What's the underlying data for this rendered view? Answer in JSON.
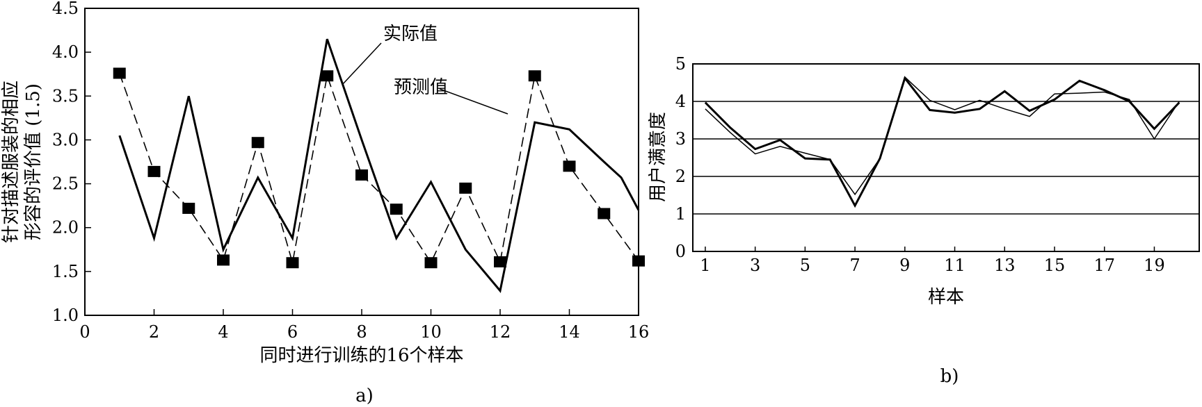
{
  "chart_data": [
    {
      "type": "line",
      "panel_label": "a)",
      "xlabel": "同时进行训练的16个样本",
      "ylabel": [
        "针对描述服装的相应",
        "形容的评价值 (1.5)"
      ],
      "xlim": [
        0,
        16
      ],
      "ylim": [
        1.0,
        4.5
      ],
      "x_ticks": [
        "0",
        "2",
        "4",
        "6",
        "8",
        "10",
        "12",
        "14",
        "16"
      ],
      "y_ticks": [
        "1.0",
        "1.5",
        "2.0",
        "2.5",
        "3.0",
        "3.5",
        "4.0",
        "4.5"
      ],
      "grid": false,
      "annotations": [
        "实际值",
        "预测值"
      ],
      "series": [
        {
          "name": "实际值",
          "style": "solid",
          "color": "#000000",
          "x": [
            1,
            2,
            3,
            4,
            5,
            6,
            7,
            8,
            9,
            10,
            11,
            12,
            13,
            14,
            15,
            15.5,
            16
          ],
          "y": [
            3.05,
            1.88,
            3.5,
            1.75,
            2.57,
            1.88,
            4.15,
            3.0,
            1.88,
            2.52,
            1.75,
            1.28,
            3.2,
            3.12,
            2.75,
            2.57,
            2.2
          ]
        },
        {
          "name": "预测值",
          "style": "dashed-square-markers",
          "color": "#000000",
          "x": [
            1,
            2,
            3,
            4,
            5,
            6,
            7,
            8,
            9,
            10,
            11,
            12,
            13,
            14,
            15,
            16
          ],
          "y": [
            3.76,
            2.64,
            2.22,
            1.63,
            2.97,
            1.6,
            3.73,
            2.6,
            2.21,
            1.6,
            2.45,
            1.61,
            3.73,
            2.7,
            2.16,
            1.62
          ]
        }
      ]
    },
    {
      "type": "line",
      "panel_label": "b)",
      "xlabel": "样本",
      "ylabel": "用户满意度",
      "xlim": [
        0.5,
        20.8
      ],
      "ylim": [
        0,
        5
      ],
      "x_ticks": [
        "1",
        "3",
        "5",
        "7",
        "9",
        "11",
        "13",
        "15",
        "17",
        "19"
      ],
      "y_ticks": [
        "0",
        "1",
        "2",
        "3",
        "4",
        "5"
      ],
      "grid": "horizontal",
      "series": [
        {
          "style": "thick",
          "color": "#000000",
          "x": [
            1,
            2,
            3,
            4,
            5,
            6,
            7,
            8,
            9,
            10,
            11,
            12,
            13,
            14,
            15,
            16,
            17,
            18,
            19,
            20
          ],
          "y": [
            3.97,
            3.3,
            2.73,
            2.97,
            2.48,
            2.45,
            1.22,
            2.48,
            4.62,
            3.77,
            3.7,
            3.8,
            4.27,
            3.75,
            4.05,
            4.55,
            4.3,
            4.0,
            3.27,
            3.97
          ]
        },
        {
          "style": "thin",
          "color": "#000000",
          "x": [
            1,
            2,
            3,
            4,
            5,
            6,
            7,
            8,
            9,
            10,
            11,
            12,
            13,
            14,
            15,
            16,
            17,
            18,
            19,
            20
          ],
          "y": [
            3.8,
            3.17,
            2.6,
            2.8,
            2.62,
            2.45,
            1.52,
            2.48,
            4.65,
            4.03,
            3.78,
            4.03,
            3.8,
            3.6,
            4.2,
            4.22,
            4.25,
            4.05,
            3.0,
            4.0
          ]
        }
      ]
    }
  ]
}
